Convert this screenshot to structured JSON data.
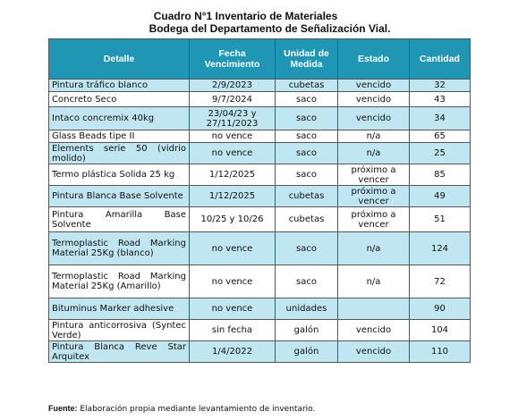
{
  "title_line1": "Cuadro N°1 Inventario de Materiales",
  "title_line2": "Bodega del Departamento de Señalización Vial.",
  "headers": [
    "Detalle",
    "Fecha Vencimiento",
    "Unidad de Medida",
    "Estado",
    "Cantidad"
  ],
  "rows": [
    {
      "detalle": "Pintura tráfico blanco",
      "fecha": "2/9/2023",
      "unidad": "cubetas",
      "estado": "vencido",
      "cantidad": "32"
    },
    {
      "detalle": "Concreto Seco",
      "fecha": "9/7/2024",
      "unidad": "saco",
      "estado": "vencido",
      "cantidad": "43"
    },
    {
      "detalle": "Intaco concremix 40kg",
      "fecha": "23/04/23 y 27/11/2023",
      "unidad": "saco",
      "estado": "vencido",
      "cantidad": "34"
    },
    {
      "detalle": "Glass Beads tipe II",
      "fecha": "no vence",
      "unidad": "saco",
      "estado": "n/a",
      "cantidad": "65"
    },
    {
      "detalle": "Elements serie 50 (vidrio molido)",
      "fecha": "no vence",
      "unidad": "saco",
      "estado": "n/a",
      "cantidad": "25"
    },
    {
      "detalle": "Termo plástica Solida 25 kg",
      "fecha": "1/12/2025",
      "unidad": "saco",
      "estado": "próximo a vencer",
      "cantidad": "85"
    },
    {
      "detalle": "Pintura Blanca Base Solvente",
      "fecha": "1/12/2025",
      "unidad": "cubetas",
      "estado": "próximo a vencer",
      "cantidad": "49"
    },
    {
      "detalle": "Pintura Amarilla Base Solvente",
      "fecha": "10/25 y 10/26",
      "unidad": "cubetas",
      "estado": "próximo a vencer",
      "cantidad": "51"
    },
    {
      "detalle": "Termoplastic Road Marking Material 25Kg (blanco)",
      "fecha": "no vence",
      "unidad": "saco",
      "estado": "n/a",
      "cantidad": "124"
    },
    {
      "detalle": "Termoplastic Road Marking Material 25Kg (Amarillo)",
      "fecha": "no vence",
      "unidad": "saco",
      "estado": "n/a",
      "cantidad": "72"
    },
    {
      "detalle": "Bituminus Marker adhesive",
      "fecha": "no vence",
      "unidad": "unidades",
      "estado": "",
      "cantidad": "90"
    },
    {
      "detalle": "Pintura anticorrosiva (Syntec Verde)",
      "fecha": "sin fecha",
      "unidad": "galón",
      "estado": "vencido",
      "cantidad": "104"
    },
    {
      "detalle": "Pintura Blanca Reve Star Arquitex",
      "fecha": "1/4/2022",
      "unidad": "galón",
      "estado": "vencido",
      "cantidad": "110"
    }
  ],
  "source_label": "Fuente:",
  "source_text": "Elaboración propia mediante levantamiento de inventario.",
  "colors": {
    "header_bg": "#1f97b4",
    "row_alt_bg": "#bfe6f1"
  }
}
